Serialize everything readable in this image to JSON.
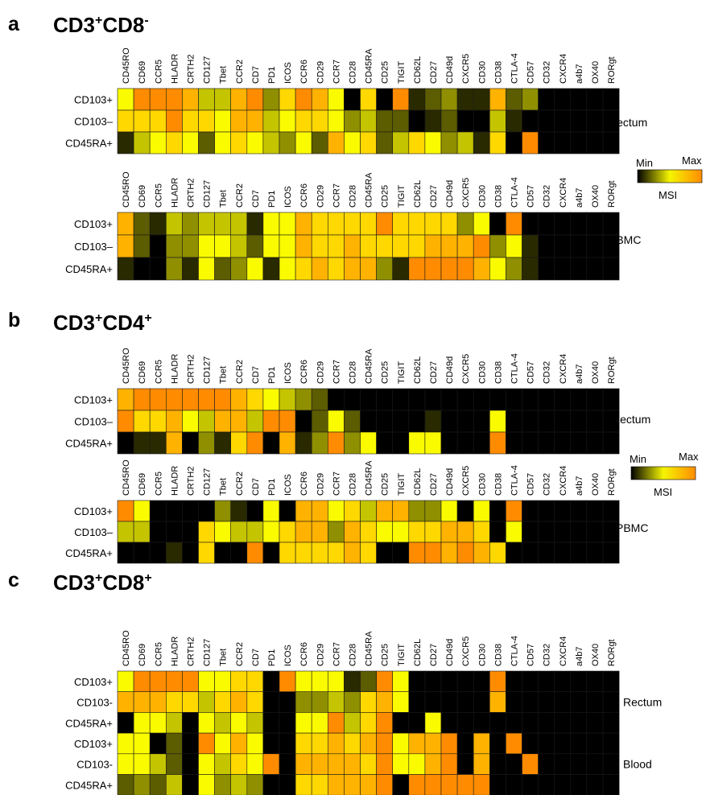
{
  "color_scale": {
    "stops": [
      "#000000",
      "#2a2a00",
      "#5c5c00",
      "#8f8f00",
      "#c4c400",
      "#fbfb00",
      "#ffd800",
      "#ffb300",
      "#ff8c00"
    ],
    "label_min": "Min",
    "label_max": "Max",
    "label_title": "MSI"
  },
  "chart_data": [
    {
      "type": "heatmap",
      "panel": "a",
      "title_parts": [
        "CD3",
        "+",
        "CD8",
        "-"
      ],
      "blocks": [
        {
          "tissue": "Rectum",
          "columns": [
            "CD45RO",
            "CD69",
            "CCR5",
            "HLADR",
            "CRTH2",
            "CD127",
            "Tbet",
            "CCR2",
            "CD7",
            "PD1",
            "ICOS",
            "CCR6",
            "CD29",
            "CCR7",
            "CD28",
            "CD45RA",
            "CD25",
            "TIGIT",
            "CD62L",
            "CD27",
            "CD49d",
            "CXCR5",
            "CD30",
            "CD38",
            "CTLA-4",
            "CD57",
            "CD32",
            "CXCR4",
            "a4b7",
            "OX40",
            "RORgt"
          ],
          "rows": [
            "CD103+",
            "CD103–",
            "CD45RA+"
          ],
          "values": [
            [
              5,
              8,
              8,
              8,
              7,
              4,
              4,
              7,
              8,
              3,
              6,
              8,
              7,
              5,
              0,
              6,
              0,
              8,
              1,
              2,
              3,
              1,
              1,
              7,
              2,
              3,
              0,
              0,
              0,
              0,
              0
            ],
            [
              6,
              6,
              6,
              8,
              6,
              6,
              5,
              7,
              7,
              4,
              5,
              6,
              6,
              5,
              3,
              4,
              2,
              2,
              0,
              1,
              2,
              0,
              0,
              4,
              1,
              0,
              0,
              0,
              0,
              0,
              0
            ],
            [
              1,
              4,
              5,
              6,
              5,
              2,
              5,
              6,
              5,
              4,
              3,
              5,
              2,
              7,
              5,
              6,
              2,
              4,
              6,
              5,
              3,
              4,
              1,
              6,
              0,
              8,
              0,
              0,
              0,
              0,
              0
            ]
          ]
        },
        {
          "tissue": "PBMC",
          "columns": [
            "CD45RO",
            "CD69",
            "CCR5",
            "HLADR",
            "CRTH2",
            "CD127",
            "Tbet",
            "CCR2",
            "CD7",
            "PD1",
            "ICOS",
            "CCR6",
            "CD29",
            "CCR7",
            "CD28",
            "CD45RA",
            "CD25",
            "TIGIT",
            "CD62L",
            "CD27",
            "CD49d",
            "CXCR5",
            "CD30",
            "CD38",
            "CTLA-4",
            "CD57",
            "CD32",
            "CXCR4",
            "a4b7",
            "OX40",
            "RORgt"
          ],
          "rows": [
            "CD103+",
            "CD103–",
            "CD45RA+"
          ],
          "values": [
            [
              7,
              2,
              1,
              4,
              3,
              4,
              4,
              4,
              1,
              5,
              5,
              7,
              6,
              6,
              6,
              6,
              8,
              6,
              6,
              6,
              6,
              3,
              5,
              0,
              8,
              0,
              0,
              0,
              0,
              0,
              0
            ],
            [
              7,
              2,
              0,
              3,
              3,
              5,
              5,
              4,
              2,
              5,
              5,
              7,
              6,
              6,
              7,
              6,
              6,
              6,
              6,
              7,
              7,
              7,
              8,
              3,
              5,
              1,
              0,
              0,
              0,
              0,
              0
            ],
            [
              1,
              0,
              0,
              3,
              1,
              5,
              2,
              3,
              5,
              1,
              5,
              6,
              7,
              6,
              7,
              7,
              3,
              1,
              8,
              8,
              8,
              8,
              7,
              5,
              3,
              1,
              0,
              0,
              0,
              0,
              0
            ]
          ]
        }
      ]
    },
    {
      "type": "heatmap",
      "panel": "b",
      "title_parts": [
        "CD3",
        "+",
        "CD4",
        "+"
      ],
      "blocks": [
        {
          "tissue": "Rectum",
          "columns": [
            "CD45RO",
            "CD69",
            "CCR5",
            "HLADR",
            "CRTH2",
            "CD127",
            "Tbet",
            "CCR2",
            "CD7",
            "PD1",
            "ICOS",
            "CCR6",
            "CD29",
            "CCR7",
            "CD28",
            "CD45RA",
            "CD25",
            "TIGIT",
            "CD62L",
            "CD27",
            "CD49d",
            "CXCR5",
            "CD30",
            "CD38",
            "CTLA-4",
            "CD57",
            "CD32",
            "CXCR4",
            "a4b7",
            "OX40",
            "RORgt"
          ],
          "rows": [
            "CD103+",
            "CD103–",
            "CD45RA+"
          ],
          "values": [
            [
              7,
              8,
              8,
              8,
              8,
              8,
              8,
              7,
              6,
              5,
              4,
              3,
              2,
              0,
              0,
              0,
              0,
              0,
              0,
              0,
              0,
              0,
              0,
              0,
              0,
              0,
              0,
              0,
              0,
              0,
              0
            ],
            [
              8,
              6,
              6,
              7,
              5,
              4,
              7,
              7,
              4,
              8,
              8,
              0,
              2,
              5,
              2,
              0,
              0,
              0,
              0,
              1,
              0,
              0,
              0,
              5,
              0,
              0,
              0,
              0,
              0,
              0,
              0
            ],
            [
              0,
              1,
              1,
              7,
              0,
              3,
              1,
              6,
              8,
              0,
              7,
              1,
              3,
              8,
              3,
              5,
              0,
              0,
              5,
              5,
              0,
              0,
              0,
              8,
              0,
              0,
              0,
              0,
              0,
              0,
              0
            ]
          ]
        },
        {
          "tissue": "PBMC",
          "columns": [
            "CD45RO",
            "CD69",
            "CCR5",
            "HLADR",
            "CRTH2",
            "CD127",
            "Tbet",
            "CCR2",
            "CD7",
            "PD1",
            "ICOS",
            "CCR6",
            "CD29",
            "CCR7",
            "CD28",
            "CD45RA",
            "CD25",
            "TIGIT",
            "CD62L",
            "CD27",
            "CD49d",
            "CXCR5",
            "CD30",
            "CD38",
            "CTLA-4",
            "CD57",
            "CD32",
            "CXCR4",
            "a4b7",
            "OX40",
            "RORgt"
          ],
          "rows": [
            "CD103+",
            "CD103–",
            "CD45RA+"
          ],
          "values": [
            [
              8,
              5,
              0,
              0,
              0,
              0,
              3,
              1,
              0,
              5,
              0,
              7,
              7,
              5,
              6,
              4,
              7,
              7,
              3,
              3,
              5,
              0,
              5,
              0,
              8,
              0,
              0,
              0,
              0,
              0,
              0
            ],
            [
              4,
              4,
              0,
              0,
              0,
              6,
              5,
              4,
              4,
              5,
              6,
              7,
              7,
              3,
              7,
              6,
              5,
              5,
              6,
              6,
              7,
              7,
              6,
              0,
              5,
              0,
              0,
              0,
              0,
              0,
              0
            ],
            [
              0,
              0,
              0,
              1,
              0,
              6,
              0,
              0,
              8,
              0,
              6,
              6,
              6,
              6,
              7,
              6,
              0,
              0,
              8,
              8,
              7,
              8,
              7,
              6,
              0,
              0,
              0,
              0,
              0,
              0,
              0
            ]
          ]
        }
      ]
    },
    {
      "type": "heatmap",
      "panel": "c",
      "title_parts": [
        "CD3",
        "+",
        "CD8",
        "+"
      ],
      "blocks": [
        {
          "tissue": "Rectum",
          "columns": [
            "CD45RO",
            "CD69",
            "CCR5",
            "HLADR",
            "CRTH2",
            "CD127",
            "Tbet",
            "CCR2",
            "CD7",
            "PD1",
            "ICOS",
            "CCR6",
            "CD29",
            "CCR7",
            "CD28",
            "CD45RA",
            "CD25",
            "TIGIT",
            "CD62L",
            "CD27",
            "CD49d",
            "CXCR5",
            "CD30",
            "CD38",
            "CTLA-4",
            "CD57",
            "CD32",
            "CXCR4",
            "a4b7",
            "OX40",
            "RORgt"
          ],
          "rows": [
            "CD103+",
            "CD103-",
            "CD45RA+",
            "CD103+",
            "CD103-",
            "CD45RA+"
          ],
          "group_labels": [
            {
              "label": "Rectum",
              "rows": [
                0,
                2
              ]
            },
            {
              "label": "Blood",
              "rows": [
                3,
                5
              ]
            }
          ],
          "values": [
            [
              5,
              8,
              8,
              8,
              8,
              5,
              5,
              6,
              6,
              0,
              8,
              5,
              5,
              5,
              1,
              2,
              8,
              5,
              0,
              0,
              0,
              0,
              0,
              8,
              0,
              0,
              0,
              0,
              0,
              0,
              0
            ],
            [
              7,
              7,
              7,
              6,
              6,
              4,
              6,
              7,
              6,
              0,
              0,
              3,
              3,
              4,
              3,
              6,
              7,
              5,
              0,
              0,
              0,
              0,
              0,
              7,
              0,
              0,
              0,
              0,
              0,
              0,
              0
            ],
            [
              0,
              5,
              5,
              4,
              0,
              5,
              4,
              5,
              4,
              0,
              0,
              5,
              5,
              8,
              4,
              6,
              8,
              0,
              0,
              5,
              0,
              0,
              0,
              0,
              0,
              0,
              0,
              0,
              0,
              0,
              0
            ]
          ],
          "values_blood": [
            [
              5,
              5,
              0,
              2,
              0,
              8,
              5,
              7,
              5,
              0,
              0,
              6,
              6,
              7,
              6,
              7,
              8,
              5,
              7,
              7,
              8,
              0,
              7,
              0,
              8,
              0,
              0,
              0,
              0,
              0,
              0
            ],
            [
              5,
              5,
              4,
              2,
              0,
              5,
              4,
              6,
              5,
              8,
              0,
              7,
              7,
              7,
              7,
              6,
              8,
              5,
              5,
              7,
              8,
              0,
              7,
              0,
              0,
              8,
              0,
              0,
              0,
              0,
              0
            ],
            [
              2,
              3,
              2,
              4,
              0,
              5,
              3,
              4,
              3,
              0,
              0,
              6,
              6,
              7,
              7,
              7,
              8,
              0,
              8,
              8,
              8,
              8,
              8,
              0,
              0,
              0,
              0,
              0,
              0,
              0,
              0
            ]
          ]
        }
      ]
    }
  ]
}
